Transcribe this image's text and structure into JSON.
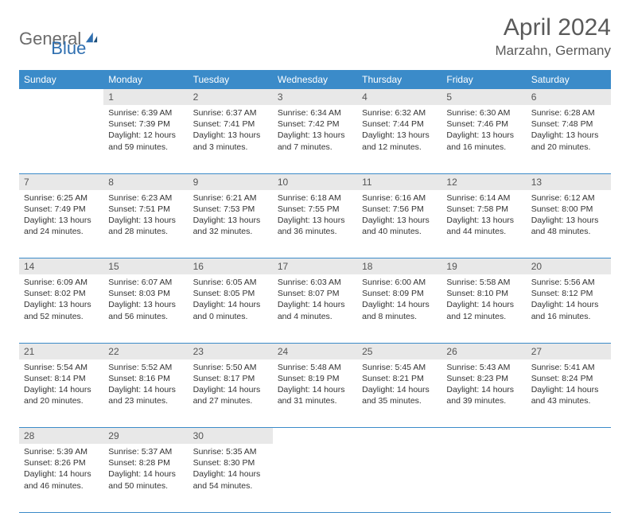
{
  "logo": {
    "part1": "General",
    "part2": "Blue"
  },
  "title": "April 2024",
  "location": "Marzahn, Germany",
  "weekdays": [
    "Sunday",
    "Monday",
    "Tuesday",
    "Wednesday",
    "Thursday",
    "Friday",
    "Saturday"
  ],
  "colors": {
    "header_bg": "#3b8bc9",
    "header_fg": "#ffffff",
    "daynum_bg": "#e8e8e8",
    "rule": "#3b8bc9",
    "logo_gray": "#6b6b6b",
    "logo_blue": "#2f6fb0"
  },
  "weeks": [
    [
      null,
      {
        "n": "1",
        "sr": "6:39 AM",
        "ss": "7:39 PM",
        "dl": "12 hours and 59 minutes."
      },
      {
        "n": "2",
        "sr": "6:37 AM",
        "ss": "7:41 PM",
        "dl": "13 hours and 3 minutes."
      },
      {
        "n": "3",
        "sr": "6:34 AM",
        "ss": "7:42 PM",
        "dl": "13 hours and 7 minutes."
      },
      {
        "n": "4",
        "sr": "6:32 AM",
        "ss": "7:44 PM",
        "dl": "13 hours and 12 minutes."
      },
      {
        "n": "5",
        "sr": "6:30 AM",
        "ss": "7:46 PM",
        "dl": "13 hours and 16 minutes."
      },
      {
        "n": "6",
        "sr": "6:28 AM",
        "ss": "7:48 PM",
        "dl": "13 hours and 20 minutes."
      }
    ],
    [
      {
        "n": "7",
        "sr": "6:25 AM",
        "ss": "7:49 PM",
        "dl": "13 hours and 24 minutes."
      },
      {
        "n": "8",
        "sr": "6:23 AM",
        "ss": "7:51 PM",
        "dl": "13 hours and 28 minutes."
      },
      {
        "n": "9",
        "sr": "6:21 AM",
        "ss": "7:53 PM",
        "dl": "13 hours and 32 minutes."
      },
      {
        "n": "10",
        "sr": "6:18 AM",
        "ss": "7:55 PM",
        "dl": "13 hours and 36 minutes."
      },
      {
        "n": "11",
        "sr": "6:16 AM",
        "ss": "7:56 PM",
        "dl": "13 hours and 40 minutes."
      },
      {
        "n": "12",
        "sr": "6:14 AM",
        "ss": "7:58 PM",
        "dl": "13 hours and 44 minutes."
      },
      {
        "n": "13",
        "sr": "6:12 AM",
        "ss": "8:00 PM",
        "dl": "13 hours and 48 minutes."
      }
    ],
    [
      {
        "n": "14",
        "sr": "6:09 AM",
        "ss": "8:02 PM",
        "dl": "13 hours and 52 minutes."
      },
      {
        "n": "15",
        "sr": "6:07 AM",
        "ss": "8:03 PM",
        "dl": "13 hours and 56 minutes."
      },
      {
        "n": "16",
        "sr": "6:05 AM",
        "ss": "8:05 PM",
        "dl": "14 hours and 0 minutes."
      },
      {
        "n": "17",
        "sr": "6:03 AM",
        "ss": "8:07 PM",
        "dl": "14 hours and 4 minutes."
      },
      {
        "n": "18",
        "sr": "6:00 AM",
        "ss": "8:09 PM",
        "dl": "14 hours and 8 minutes."
      },
      {
        "n": "19",
        "sr": "5:58 AM",
        "ss": "8:10 PM",
        "dl": "14 hours and 12 minutes."
      },
      {
        "n": "20",
        "sr": "5:56 AM",
        "ss": "8:12 PM",
        "dl": "14 hours and 16 minutes."
      }
    ],
    [
      {
        "n": "21",
        "sr": "5:54 AM",
        "ss": "8:14 PM",
        "dl": "14 hours and 20 minutes."
      },
      {
        "n": "22",
        "sr": "5:52 AM",
        "ss": "8:16 PM",
        "dl": "14 hours and 23 minutes."
      },
      {
        "n": "23",
        "sr": "5:50 AM",
        "ss": "8:17 PM",
        "dl": "14 hours and 27 minutes."
      },
      {
        "n": "24",
        "sr": "5:48 AM",
        "ss": "8:19 PM",
        "dl": "14 hours and 31 minutes."
      },
      {
        "n": "25",
        "sr": "5:45 AM",
        "ss": "8:21 PM",
        "dl": "14 hours and 35 minutes."
      },
      {
        "n": "26",
        "sr": "5:43 AM",
        "ss": "8:23 PM",
        "dl": "14 hours and 39 minutes."
      },
      {
        "n": "27",
        "sr": "5:41 AM",
        "ss": "8:24 PM",
        "dl": "14 hours and 43 minutes."
      }
    ],
    [
      {
        "n": "28",
        "sr": "5:39 AM",
        "ss": "8:26 PM",
        "dl": "14 hours and 46 minutes."
      },
      {
        "n": "29",
        "sr": "5:37 AM",
        "ss": "8:28 PM",
        "dl": "14 hours and 50 minutes."
      },
      {
        "n": "30",
        "sr": "5:35 AM",
        "ss": "8:30 PM",
        "dl": "14 hours and 54 minutes."
      },
      null,
      null,
      null,
      null
    ]
  ],
  "labels": {
    "sunrise": "Sunrise:",
    "sunset": "Sunset:",
    "daylight": "Daylight:"
  }
}
